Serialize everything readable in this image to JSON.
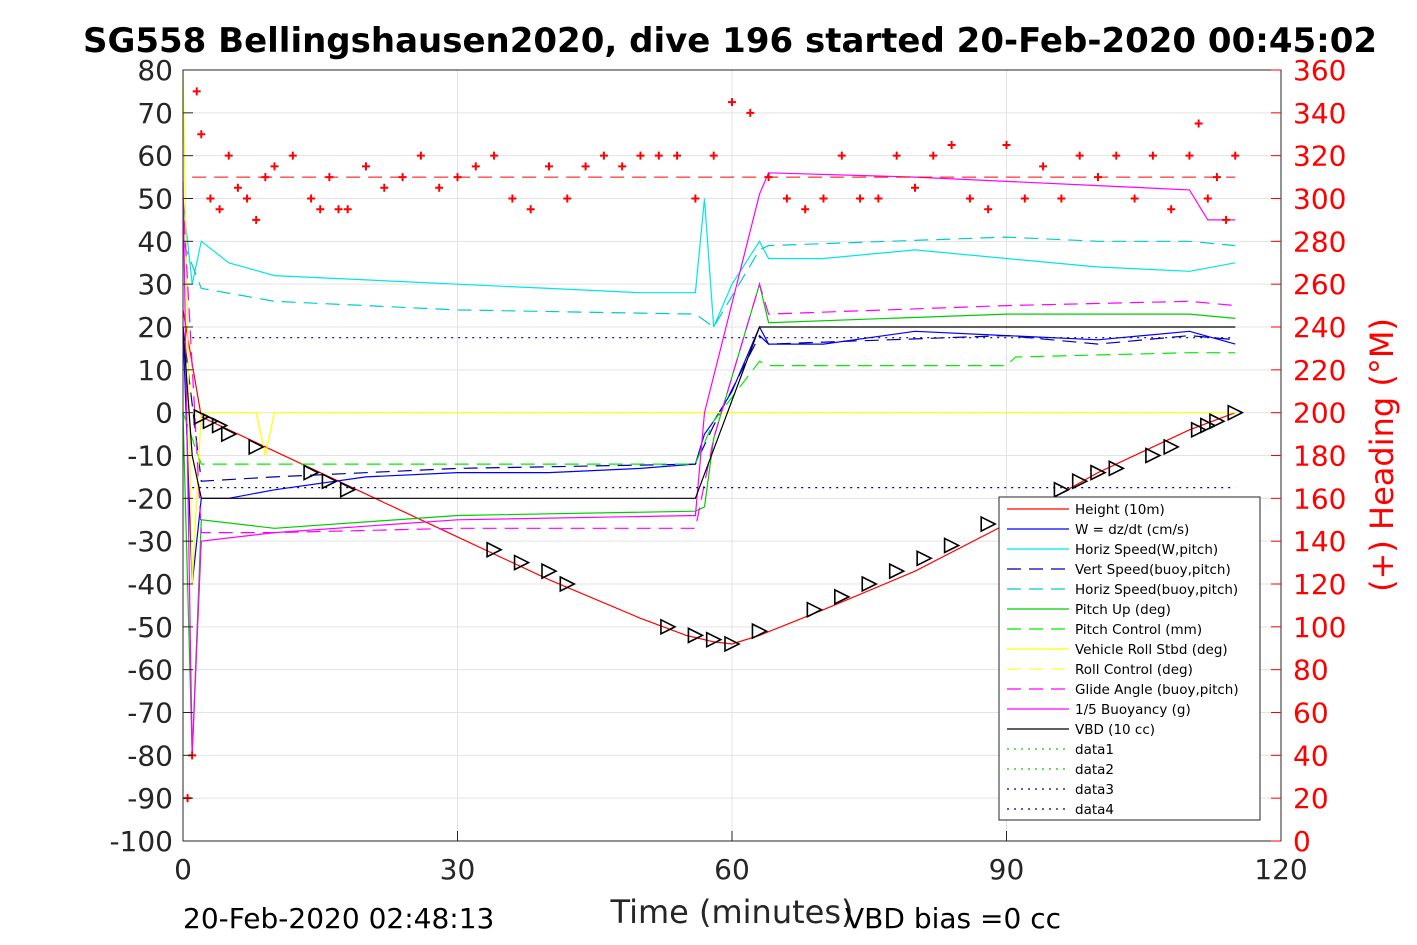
{
  "chart_data": {
    "type": "line",
    "title": "SG558 Bellingshausen2020, dive 196 started 20-Feb-2020 00:45:02",
    "xlabel": "Time (minutes)",
    "ylabel": "",
    "y2label": "(+) Heading (°M)",
    "xlim": [
      0,
      120
    ],
    "ylim": [
      -100,
      80
    ],
    "y2lim": [
      0,
      360
    ],
    "xticks": [
      0,
      30,
      60,
      90,
      120
    ],
    "yticks": [
      80,
      70,
      60,
      50,
      40,
      30,
      20,
      10,
      0,
      -10,
      -20,
      -30,
      -40,
      -50,
      -60,
      -70,
      -80,
      -90,
      -100
    ],
    "y2ticks": [
      360,
      340,
      320,
      300,
      280,
      260,
      240,
      220,
      200,
      180,
      160,
      140,
      120,
      100,
      80,
      60,
      40,
      20,
      0
    ],
    "grid": true,
    "legend_position": "lower-right",
    "footer_left": "20-Feb-2020 02:48:13",
    "footer_right": "VBD bias =0 cc",
    "series": [
      {
        "name": "Height (10m)",
        "color": "#ff0000",
        "style": "solid",
        "x": [
          0,
          2,
          10,
          20,
          30,
          40,
          50,
          55,
          58,
          60,
          63,
          70,
          80,
          90,
          100,
          110,
          115
        ],
        "y": [
          24,
          -1,
          -9,
          -19,
          -29,
          -39,
          -48,
          -52,
          -53.5,
          -54,
          -52,
          -46,
          -37,
          -26,
          -14,
          -4,
          0
        ]
      },
      {
        "name": "W = dz/dt (cm/s)",
        "color": "#0000ff",
        "style": "solid",
        "x": [
          0,
          1,
          2,
          5,
          10,
          20,
          30,
          40,
          50,
          56,
          57,
          58,
          60,
          63,
          64,
          70,
          80,
          90,
          100,
          110,
          115
        ],
        "y": [
          20,
          -40,
          -20,
          -20,
          -18,
          -15,
          -14,
          -14,
          -13,
          -12,
          -5,
          -2,
          5,
          20,
          16,
          16,
          19,
          18,
          17,
          19,
          16
        ]
      },
      {
        "name": "Horiz Speed(W,pitch)",
        "color": "#00e5e5",
        "style": "solid",
        "x": [
          0,
          1,
          2,
          5,
          10,
          20,
          30,
          40,
          50,
          56,
          57,
          58,
          60,
          63,
          64,
          70,
          80,
          90,
          100,
          110,
          115
        ],
        "y": [
          50,
          30,
          40,
          35,
          32,
          31,
          30,
          29,
          28,
          28,
          50,
          20,
          30,
          40,
          36,
          36,
          38,
          36,
          34,
          33,
          35
        ]
      },
      {
        "name": "Vert Speed(buoy,pitch)",
        "color": "#0000aa",
        "style": "dashed",
        "x": [
          0,
          2,
          10,
          30,
          56,
          58,
          63,
          64,
          90,
          100,
          110,
          115
        ],
        "y": [
          20,
          -16,
          -15,
          -13,
          -12,
          -3,
          18,
          16,
          18,
          16,
          18,
          17
        ]
      },
      {
        "name": "Horiz Speed(buoy,pitch)",
        "color": "#00cccc",
        "style": "dashed",
        "x": [
          0,
          2,
          10,
          30,
          56,
          58,
          63,
          64,
          90,
          100,
          110,
          115
        ],
        "y": [
          40,
          29,
          26,
          24,
          23,
          20,
          38,
          39,
          41,
          40,
          40,
          39
        ]
      },
      {
        "name": "Pitch Up (deg)",
        "color": "#00cc00",
        "style": "solid",
        "x": [
          0,
          1,
          2,
          10,
          30,
          56,
          57,
          58,
          63,
          64,
          90,
          110,
          115
        ],
        "y": [
          0,
          -80,
          -25,
          -27,
          -24,
          -23,
          -22,
          -6,
          30,
          21,
          23,
          23,
          22
        ]
      },
      {
        "name": "Pitch Control (mm)",
        "color": "#00ee00",
        "style": "dashed",
        "x": [
          0,
          2,
          56,
          58,
          63,
          64,
          90,
          91,
          110,
          115
        ],
        "y": [
          0,
          -12,
          -12,
          -2,
          12,
          11,
          11,
          13,
          14,
          14
        ]
      },
      {
        "name": "Vehicle Roll Stbd (deg)",
        "color": "#ffff00",
        "style": "solid",
        "x": [
          0,
          1,
          2,
          5,
          8,
          9,
          10,
          20,
          30,
          40,
          50,
          60,
          70,
          80,
          90,
          100,
          110,
          115
        ],
        "y": [
          80,
          -40,
          0,
          0,
          0,
          -10,
          0,
          0,
          0,
          0,
          0,
          0,
          0,
          0,
          0,
          0,
          0,
          0
        ]
      },
      {
        "name": "Roll Control (deg)",
        "color": "#ffff33",
        "style": "dashed",
        "x": [
          0,
          2,
          20,
          40,
          60,
          80,
          100,
          115
        ],
        "y": [
          0,
          0,
          0,
          0,
          0,
          0,
          0,
          0
        ]
      },
      {
        "name": "Glide Angle (buoy,pitch)",
        "color": "#ff00ff",
        "style": "dashed",
        "x": [
          0,
          2,
          10,
          30,
          56,
          58,
          63,
          64,
          90,
          110,
          115
        ],
        "y": [
          50,
          -28,
          -28,
          -27,
          -27,
          -6,
          30,
          23,
          25,
          26,
          25
        ]
      },
      {
        "name": "1/5 Buoyancy (g)",
        "color": "#ff00ff",
        "style": "solid",
        "x": [
          0,
          1,
          2,
          10,
          30,
          56,
          57,
          63,
          64,
          80,
          100,
          110,
          112,
          115
        ],
        "y": [
          54,
          -80,
          -30,
          -28,
          -25,
          -24,
          0,
          51,
          56,
          55,
          53,
          52,
          45,
          45
        ]
      },
      {
        "name": "VBD (10 cc)",
        "color": "#000000",
        "style": "solid",
        "x": [
          0,
          1,
          2,
          56,
          63,
          64,
          115
        ],
        "y": [
          20,
          -10,
          -20,
          -20,
          20,
          20,
          20
        ]
      },
      {
        "name": "data1",
        "color": "#00cc00",
        "style": "dotted",
        "x": [],
        "y": []
      },
      {
        "name": "data2",
        "color": "#00cc00",
        "style": "dotted",
        "x": [],
        "y": []
      },
      {
        "name": "data3",
        "color": "#000080",
        "style": "dotted",
        "x": [
          1,
          115
        ],
        "y": [
          -17.5,
          -17.5
        ]
      },
      {
        "name": "data4",
        "color": "#000080",
        "style": "dotted",
        "x": [
          1,
          115
        ],
        "y": [
          17.5,
          17.5
        ]
      }
    ],
    "heading": {
      "axis": "right",
      "marker": "+",
      "color": "#ff0000",
      "reference_line_value": 310,
      "x": [
        0.5,
        1,
        1.5,
        2,
        3,
        4,
        5,
        6,
        7,
        8,
        9,
        10,
        12,
        14,
        15,
        16,
        17,
        18,
        20,
        22,
        24,
        26,
        28,
        30,
        32,
        34,
        36,
        38,
        40,
        42,
        44,
        46,
        48,
        50,
        52,
        54,
        56,
        58,
        60,
        62,
        64,
        66,
        68,
        70,
        72,
        74,
        76,
        78,
        80,
        82,
        84,
        86,
        88,
        90,
        92,
        94,
        96,
        98,
        100,
        102,
        104,
        106,
        108,
        110,
        111,
        112,
        113,
        114,
        115
      ],
      "y": [
        20,
        40,
        350,
        330,
        300,
        295,
        320,
        305,
        300,
        290,
        310,
        315,
        320,
        300,
        295,
        310,
        295,
        295,
        315,
        305,
        310,
        320,
        305,
        310,
        315,
        320,
        300,
        295,
        315,
        300,
        315,
        320,
        315,
        320,
        320,
        320,
        300,
        320,
        345,
        340,
        310,
        300,
        295,
        300,
        320,
        300,
        300,
        320,
        305,
        320,
        325,
        300,
        295,
        325,
        300,
        315,
        300,
        320,
        310,
        320,
        300,
        320,
        295,
        320,
        335,
        300,
        310,
        290,
        320
      ]
    },
    "triangles": {
      "color": "#000000",
      "x": [
        2,
        3,
        4,
        5,
        8,
        14,
        16,
        18,
        34,
        37,
        40,
        42,
        53,
        56,
        58,
        60,
        63,
        69,
        72,
        75,
        78,
        81,
        84,
        88,
        96,
        98,
        100,
        102,
        106,
        108,
        111,
        112,
        113,
        115
      ],
      "y": [
        -1,
        -2,
        -3,
        -5,
        -8,
        -14,
        -16,
        -18,
        -32,
        -35,
        -37,
        -40,
        -50,
        -52,
        -53,
        -54,
        -51,
        -46,
        -43,
        -40,
        -37,
        -34,
        -31,
        -26,
        -18,
        -16,
        -14,
        -13,
        -10,
        -8,
        -4,
        -3,
        -2,
        0
      ]
    }
  }
}
